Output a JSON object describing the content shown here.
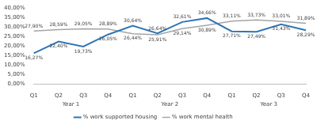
{
  "chart_data": {
    "type": "line",
    "categories": [
      "Q1",
      "Q2",
      "Q3",
      "Q4",
      "Q1",
      "Q2",
      "Q3",
      "Q4",
      "Q1",
      "Q2",
      "Q3",
      "Q4"
    ],
    "x_groups": [
      "Year 1",
      "Year 2",
      "Year 3"
    ],
    "series": [
      {
        "name": "% work supported housing",
        "color": "#2e75b6",
        "values": [
          16.27,
          22.4,
          19.73,
          26.05,
          30.64,
          26.64,
          32.61,
          34.66,
          27.71,
          27.49,
          31.43,
          28.29
        ],
        "value_labels": [
          "16,27%",
          "22,40%",
          "19,73%",
          "26,05%",
          "30,64%",
          "26,64%",
          "32,61%",
          "34,66%",
          "27,71%",
          "27,49%",
          "31,43%",
          "28,29%"
        ]
      },
      {
        "name": "% work mental health",
        "color": "#a5a5a5",
        "values": [
          27.9,
          28.59,
          29.05,
          28.89,
          26.44,
          25.91,
          29.14,
          30.89,
          33.11,
          33.73,
          33.01,
          31.89
        ],
        "value_labels": [
          "27,90%",
          "28,59%",
          "29,05%",
          "28,89%",
          "26,44%",
          "25,91%",
          "29,14%",
          "30,89%",
          "33,11%",
          "33,73%",
          "33,01%",
          "31,89%"
        ]
      }
    ],
    "ylim": [
      0,
      40
    ],
    "yticks": [
      {
        "value": 0,
        "label": "0,00%"
      },
      {
        "value": 5,
        "label": "5,00%"
      },
      {
        "value": 10,
        "label": "10,00%"
      },
      {
        "value": 15,
        "label": "15,00%"
      },
      {
        "value": 20,
        "label": "20,00%"
      },
      {
        "value": 25,
        "label": "25,00%"
      },
      {
        "value": 30,
        "label": "30,00%"
      },
      {
        "value": 35,
        "label": "35,00%"
      },
      {
        "value": 40,
        "label": "40,00%"
      }
    ],
    "grid": false,
    "legend": "bottom",
    "data_labels": true
  }
}
